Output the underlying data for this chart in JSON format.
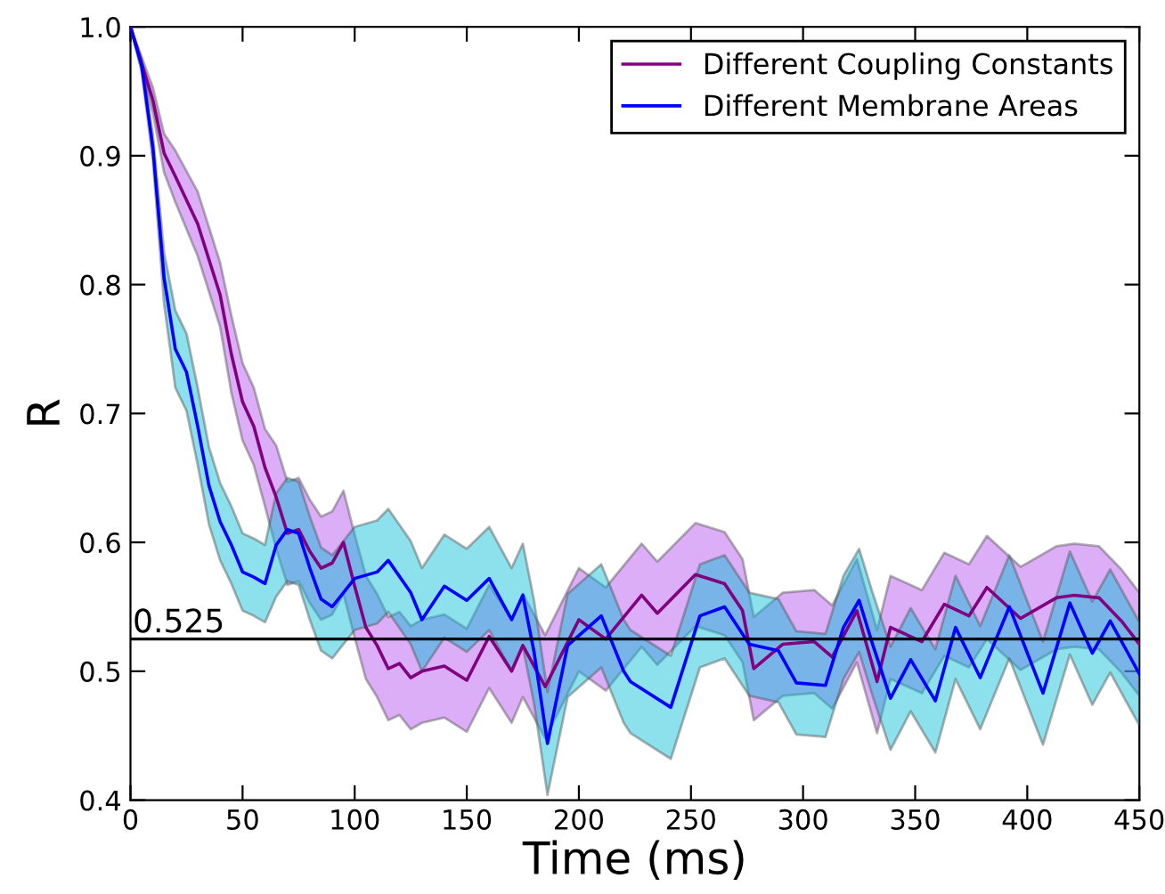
{
  "chart_data": {
    "type": "line",
    "xlabel": "Time (ms)",
    "ylabel": "R",
    "xlim": [
      0,
      450
    ],
    "ylim": [
      0.4,
      1.0
    ],
    "xticks": [
      0,
      50,
      100,
      150,
      200,
      250,
      300,
      350,
      400,
      450
    ],
    "yticks": [
      0.4,
      0.5,
      0.6,
      0.7,
      0.8,
      0.9,
      {
        "value": 1,
        "label": "1.0"
      }
    ],
    "grid": false,
    "legend": "top right",
    "line_style": "solid",
    "marker": "none",
    "ref_lines": [
      {
        "axis": "y",
        "value": 0.525,
        "label": "0.525",
        "color": "#000000"
      }
    ],
    "series": [
      {
        "name": "Different Coupling Constants",
        "color": "#800080",
        "x": [
          0,
          10,
          15,
          20,
          30,
          40,
          45,
          50,
          55,
          60,
          65,
          70,
          75,
          80,
          85,
          90,
          95,
          100,
          105,
          110,
          115,
          120,
          125,
          130,
          140,
          150,
          160,
          170,
          175,
          185,
          200,
          212,
          228,
          235,
          252,
          265,
          273,
          278,
          291,
          305,
          313,
          324,
          333,
          339,
          353,
          363,
          374,
          382,
          397,
          413,
          421,
          432,
          442,
          450
        ],
        "values": [
          1.0,
          0.943,
          0.902,
          0.884,
          0.847,
          0.792,
          0.746,
          0.709,
          0.69,
          0.658,
          0.635,
          0.607,
          0.61,
          0.593,
          0.58,
          0.584,
          0.6,
          0.566,
          0.534,
          0.52,
          0.502,
          0.506,
          0.495,
          0.5,
          0.504,
          0.493,
          0.527,
          0.5,
          0.52,
          0.488,
          0.54,
          0.525,
          0.559,
          0.545,
          0.575,
          0.568,
          0.547,
          0.502,
          0.521,
          0.523,
          0.511,
          0.547,
          0.492,
          0.534,
          0.523,
          0.552,
          0.543,
          0.565,
          0.541,
          0.557,
          0.559,
          0.557,
          0.539,
          0.521
        ],
        "lower": [
          1.0,
          0.933,
          0.887,
          0.864,
          0.822,
          0.767,
          0.716,
          0.679,
          0.66,
          0.628,
          0.595,
          0.567,
          0.57,
          0.553,
          0.54,
          0.544,
          0.56,
          0.526,
          0.494,
          0.48,
          0.462,
          0.466,
          0.455,
          0.46,
          0.464,
          0.453,
          0.487,
          0.46,
          0.48,
          0.448,
          0.5,
          0.485,
          0.519,
          0.505,
          0.535,
          0.528,
          0.507,
          0.462,
          0.481,
          0.483,
          0.471,
          0.507,
          0.452,
          0.494,
          0.483,
          0.512,
          0.503,
          0.525,
          0.501,
          0.517,
          0.519,
          0.517,
          0.499,
          0.481
        ],
        "upper": [
          1.0,
          0.953,
          0.917,
          0.904,
          0.872,
          0.817,
          0.776,
          0.739,
          0.72,
          0.688,
          0.675,
          0.647,
          0.65,
          0.633,
          0.62,
          0.624,
          0.64,
          0.606,
          0.574,
          0.56,
          0.542,
          0.546,
          0.535,
          0.54,
          0.544,
          0.533,
          0.567,
          0.54,
          0.56,
          0.528,
          0.58,
          0.565,
          0.599,
          0.585,
          0.615,
          0.608,
          0.587,
          0.542,
          0.561,
          0.563,
          0.551,
          0.587,
          0.532,
          0.574,
          0.563,
          0.592,
          0.583,
          0.605,
          0.581,
          0.597,
          0.599,
          0.597,
          0.579,
          0.561
        ]
      },
      {
        "name": "Different Membrane Areas",
        "color": "#0000ff",
        "x": [
          0,
          5,
          10,
          15,
          20,
          25,
          30,
          35,
          40,
          45,
          50,
          55,
          60,
          65,
          70,
          75,
          80,
          85,
          90,
          95,
          100,
          110,
          115,
          125,
          130,
          140,
          150,
          160,
          170,
          175,
          180,
          186,
          195,
          210,
          220,
          223,
          241,
          254,
          265,
          276,
          289,
          297,
          310,
          318,
          325,
          331,
          339,
          348,
          359,
          368,
          379,
          392,
          407,
          419,
          429,
          437,
          450
        ],
        "values": [
          1.0,
          0.97,
          0.906,
          0.805,
          0.75,
          0.732,
          0.69,
          0.644,
          0.616,
          0.598,
          0.577,
          0.573,
          0.568,
          0.598,
          0.61,
          0.607,
          0.58,
          0.556,
          0.55,
          0.561,
          0.572,
          0.577,
          0.586,
          0.561,
          0.54,
          0.566,
          0.555,
          0.572,
          0.54,
          0.559,
          0.515,
          0.444,
          0.52,
          0.543,
          0.5,
          0.492,
          0.472,
          0.543,
          0.55,
          0.521,
          0.516,
          0.491,
          0.489,
          0.534,
          0.555,
          0.521,
          0.479,
          0.509,
          0.477,
          0.534,
          0.495,
          0.55,
          0.483,
          0.553,
          0.514,
          0.539,
          0.498
        ],
        "lower": [
          1.0,
          0.965,
          0.896,
          0.785,
          0.72,
          0.702,
          0.66,
          0.614,
          0.586,
          0.568,
          0.547,
          0.543,
          0.538,
          0.558,
          0.57,
          0.567,
          0.54,
          0.516,
          0.51,
          0.521,
          0.532,
          0.537,
          0.546,
          0.521,
          0.5,
          0.526,
          0.515,
          0.532,
          0.5,
          0.519,
          0.475,
          0.404,
          0.48,
          0.503,
          0.46,
          0.452,
          0.432,
          0.503,
          0.51,
          0.481,
          0.476,
          0.451,
          0.449,
          0.494,
          0.515,
          0.481,
          0.439,
          0.469,
          0.437,
          0.494,
          0.455,
          0.51,
          0.443,
          0.513,
          0.474,
          0.499,
          0.458
        ],
        "upper": [
          1.0,
          0.975,
          0.916,
          0.825,
          0.78,
          0.762,
          0.72,
          0.674,
          0.646,
          0.628,
          0.607,
          0.603,
          0.598,
          0.638,
          0.65,
          0.647,
          0.62,
          0.596,
          0.59,
          0.601,
          0.612,
          0.617,
          0.626,
          0.601,
          0.58,
          0.606,
          0.595,
          0.612,
          0.58,
          0.599,
          0.555,
          0.484,
          0.56,
          0.583,
          0.54,
          0.532,
          0.512,
          0.583,
          0.59,
          0.561,
          0.556,
          0.531,
          0.529,
          0.574,
          0.595,
          0.561,
          0.519,
          0.549,
          0.517,
          0.574,
          0.535,
          0.59,
          0.523,
          0.593,
          0.554,
          0.579,
          0.538
        ]
      }
    ]
  }
}
